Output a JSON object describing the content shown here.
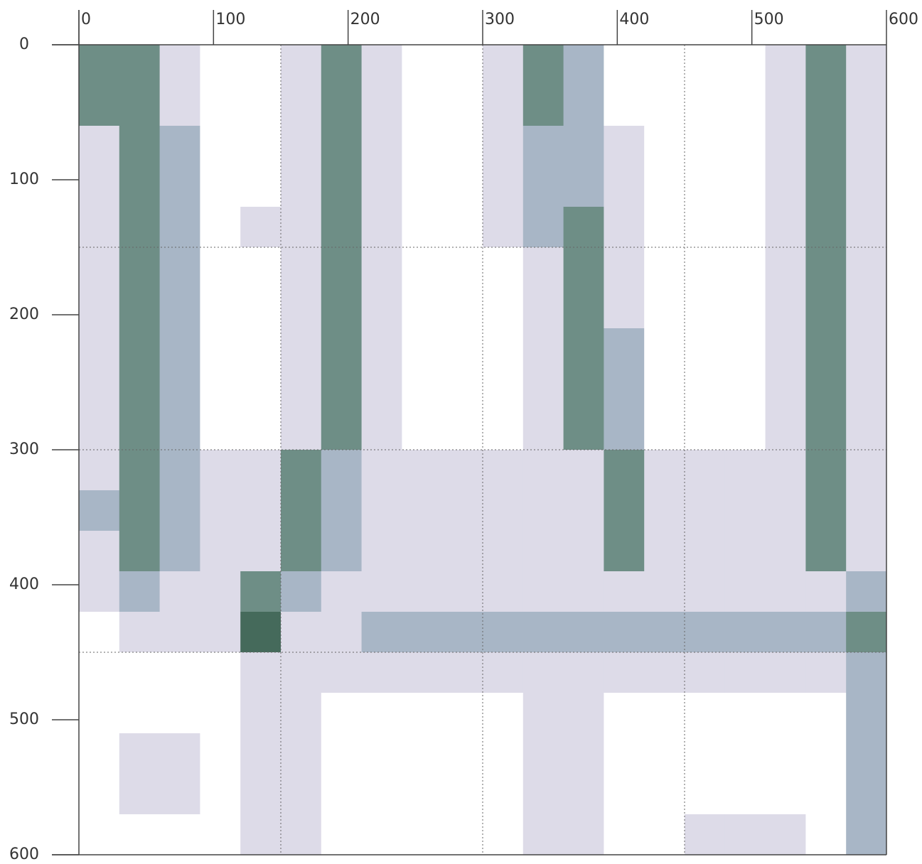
{
  "chart_data": {
    "type": "heatmap",
    "xlim": [
      0,
      600
    ],
    "ylim": [
      0,
      600
    ],
    "y_axis_inverted": true,
    "xticks": [
      0,
      100,
      200,
      300,
      400,
      500,
      600
    ],
    "yticks": [
      0,
      100,
      200,
      300,
      400,
      500,
      600
    ],
    "xgrid": [
      150,
      300,
      450
    ],
    "ygrid": [
      150,
      300,
      450
    ],
    "colors": [
      "#ffffff",
      "#dddbe8",
      "#a8b6c6",
      "#6e8e86",
      "#456a5b"
    ],
    "values": [
      [
        3,
        3,
        1,
        0,
        0,
        1,
        3,
        1,
        0,
        0,
        1,
        3,
        2,
        0,
        0,
        0,
        0,
        1,
        3,
        1
      ],
      [
        3,
        3,
        1,
        0,
        0,
        1,
        3,
        1,
        0,
        0,
        1,
        3,
        2,
        0,
        0,
        0,
        0,
        1,
        3,
        1
      ],
      [
        1,
        3,
        2,
        0,
        0,
        1,
        3,
        1,
        0,
        0,
        1,
        2,
        2,
        1,
        0,
        0,
        0,
        1,
        3,
        1
      ],
      [
        1,
        3,
        2,
        0,
        0,
        1,
        3,
        1,
        0,
        0,
        1,
        2,
        2,
        1,
        0,
        0,
        0,
        1,
        3,
        1
      ],
      [
        1,
        3,
        2,
        0,
        1,
        1,
        3,
        1,
        0,
        0,
        1,
        2,
        3,
        1,
        0,
        0,
        0,
        1,
        3,
        1
      ],
      [
        1,
        3,
        2,
        0,
        0,
        1,
        3,
        1,
        0,
        0,
        0,
        1,
        3,
        1,
        0,
        0,
        0,
        1,
        3,
        1
      ],
      [
        1,
        3,
        2,
        0,
        0,
        1,
        3,
        1,
        0,
        0,
        0,
        1,
        3,
        1,
        0,
        0,
        0,
        1,
        3,
        1
      ],
      [
        1,
        3,
        2,
        0,
        0,
        1,
        3,
        1,
        0,
        0,
        0,
        1,
        3,
        2,
        0,
        0,
        0,
        1,
        3,
        1
      ],
      [
        1,
        3,
        2,
        0,
        0,
        1,
        3,
        1,
        0,
        0,
        0,
        1,
        3,
        2,
        0,
        0,
        0,
        1,
        3,
        1
      ],
      [
        1,
        3,
        2,
        0,
        0,
        1,
        3,
        1,
        0,
        0,
        0,
        1,
        3,
        2,
        0,
        0,
        0,
        1,
        3,
        1
      ],
      [
        1,
        3,
        2,
        1,
        1,
        3,
        2,
        1,
        1,
        1,
        1,
        1,
        1,
        3,
        1,
        1,
        1,
        1,
        3,
        1
      ],
      [
        2,
        3,
        2,
        1,
        1,
        3,
        2,
        1,
        1,
        1,
        1,
        1,
        1,
        3,
        1,
        1,
        1,
        1,
        3,
        1
      ],
      [
        1,
        3,
        2,
        1,
        1,
        3,
        2,
        1,
        1,
        1,
        1,
        1,
        1,
        3,
        1,
        1,
        1,
        1,
        3,
        1
      ],
      [
        1,
        2,
        1,
        1,
        3,
        2,
        1,
        1,
        1,
        1,
        1,
        1,
        1,
        1,
        1,
        1,
        1,
        1,
        1,
        2
      ],
      [
        0,
        1,
        1,
        1,
        4,
        1,
        1,
        2,
        2,
        2,
        2,
        2,
        2,
        2,
        2,
        2,
        2,
        2,
        2,
        3
      ],
      [
        0,
        0,
        0,
        0,
        1,
        1,
        1,
        1,
        1,
        1,
        1,
        1,
        1,
        1,
        1,
        1,
        1,
        1,
        1,
        2
      ],
      [
        0,
        0,
        0,
        0,
        1,
        1,
        0,
        0,
        0,
        0,
        0,
        1,
        1,
        0,
        0,
        0,
        0,
        0,
        0,
        2
      ],
      [
        0,
        1,
        1,
        0,
        1,
        1,
        0,
        0,
        0,
        0,
        0,
        1,
        1,
        0,
        0,
        0,
        0,
        0,
        0,
        2
      ],
      [
        0,
        1,
        1,
        0,
        1,
        1,
        0,
        0,
        0,
        0,
        0,
        1,
        1,
        0,
        0,
        0,
        0,
        0,
        0,
        2
      ],
      [
        0,
        0,
        0,
        0,
        1,
        1,
        0,
        0,
        0,
        0,
        0,
        1,
        1,
        0,
        0,
        1,
        1,
        1,
        0,
        2
      ]
    ]
  }
}
